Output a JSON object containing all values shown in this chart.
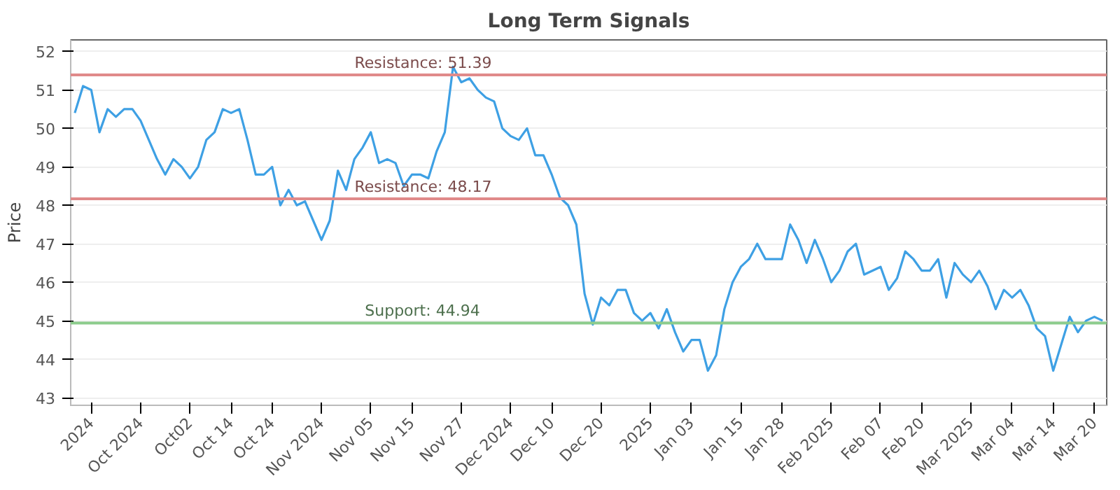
{
  "chart_data": {
    "type": "line",
    "title": "Long Term Signals",
    "ylabel": "Price",
    "categories": [
      null,
      null,
      "2024",
      null,
      null,
      null,
      null,
      null,
      "Oct 2024",
      null,
      null,
      null,
      null,
      null,
      "Oct02",
      null,
      null,
      null,
      null,
      "Oct 14",
      null,
      null,
      null,
      null,
      "Oct 24",
      null,
      null,
      null,
      null,
      null,
      "Nov 2024",
      null,
      null,
      null,
      null,
      null,
      "Nov 05",
      null,
      null,
      null,
      null,
      "Nov 15",
      null,
      null,
      null,
      null,
      null,
      "Nov 27",
      null,
      null,
      null,
      null,
      null,
      "Dec 2024",
      null,
      null,
      null,
      null,
      "Dec 10",
      null,
      null,
      null,
      null,
      null,
      "Dec 20",
      null,
      null,
      null,
      null,
      null,
      "2025",
      null,
      null,
      null,
      null,
      "Jan 03",
      null,
      null,
      null,
      null,
      null,
      "Jan 15",
      null,
      null,
      null,
      null,
      "Jan 28",
      null,
      null,
      null,
      null,
      null,
      "Feb 2025",
      null,
      null,
      null,
      null,
      null,
      "Feb 07",
      null,
      null,
      null,
      null,
      "Feb 20",
      null,
      null,
      null,
      null,
      null,
      "Mar 2025",
      null,
      null,
      null,
      null,
      "Mar 04",
      null,
      null,
      null,
      null,
      "Mar 14",
      null,
      null,
      null,
      null,
      "Mar 20",
      null
    ],
    "series": [
      {
        "color": "#3ea0e4",
        "values": [
          50.4,
          51.1,
          51.0,
          49.9,
          50.5,
          50.3,
          50.5,
          50.5,
          50.2,
          49.7,
          49.2,
          48.8,
          49.2,
          49.0,
          48.7,
          49.0,
          49.7,
          49.9,
          50.5,
          50.4,
          50.5,
          49.7,
          48.8,
          48.8,
          49.0,
          48.0,
          48.4,
          48.0,
          48.1,
          47.6,
          47.1,
          47.6,
          48.9,
          48.4,
          49.2,
          49.5,
          49.9,
          49.1,
          49.2,
          49.1,
          48.5,
          48.8,
          48.8,
          48.7,
          49.4,
          49.9,
          51.6,
          51.2,
          51.3,
          51.0,
          50.8,
          50.7,
          50.0,
          49.8,
          49.7,
          50.0,
          49.3,
          49.3,
          48.8,
          48.2,
          48.0,
          47.5,
          45.7,
          44.9,
          45.6,
          45.4,
          45.8,
          45.8,
          45.2,
          45.0,
          45.2,
          44.8,
          45.3,
          44.7,
          44.2,
          44.5,
          44.5,
          43.7,
          44.1,
          45.3,
          46.0,
          46.4,
          46.6,
          47.0,
          46.6,
          46.6,
          46.6,
          47.5,
          47.1,
          46.5,
          47.1,
          46.6,
          46.0,
          46.3,
          46.8,
          47.0,
          46.2,
          46.3,
          46.4,
          45.8,
          46.1,
          46.8,
          46.6,
          46.3,
          46.3,
          46.6,
          45.6,
          46.5,
          46.2,
          46.0,
          46.3,
          45.9,
          45.3,
          45.8,
          45.6,
          45.8,
          45.4,
          44.8,
          44.6,
          43.7,
          44.4,
          45.1,
          44.7,
          45.0,
          45.1,
          45.0
        ]
      }
    ],
    "ylim": [
      42.8,
      52.3
    ],
    "yticks": [
      43,
      44,
      45,
      46,
      47,
      48,
      49,
      50,
      51,
      52
    ],
    "grid": "y",
    "marker": "none",
    "line_style": "solid",
    "ref_lines": [
      {
        "axis": "y",
        "value": 51.39,
        "label": "Resistance: 51.39",
        "color": "#e08a8a"
      },
      {
        "axis": "y",
        "value": 48.17,
        "label": "Resistance: 48.17",
        "color": "#e08a8a"
      },
      {
        "axis": "y",
        "value": 44.94,
        "label": "Support: 44.94",
        "color": "#8ccc8c"
      }
    ]
  }
}
